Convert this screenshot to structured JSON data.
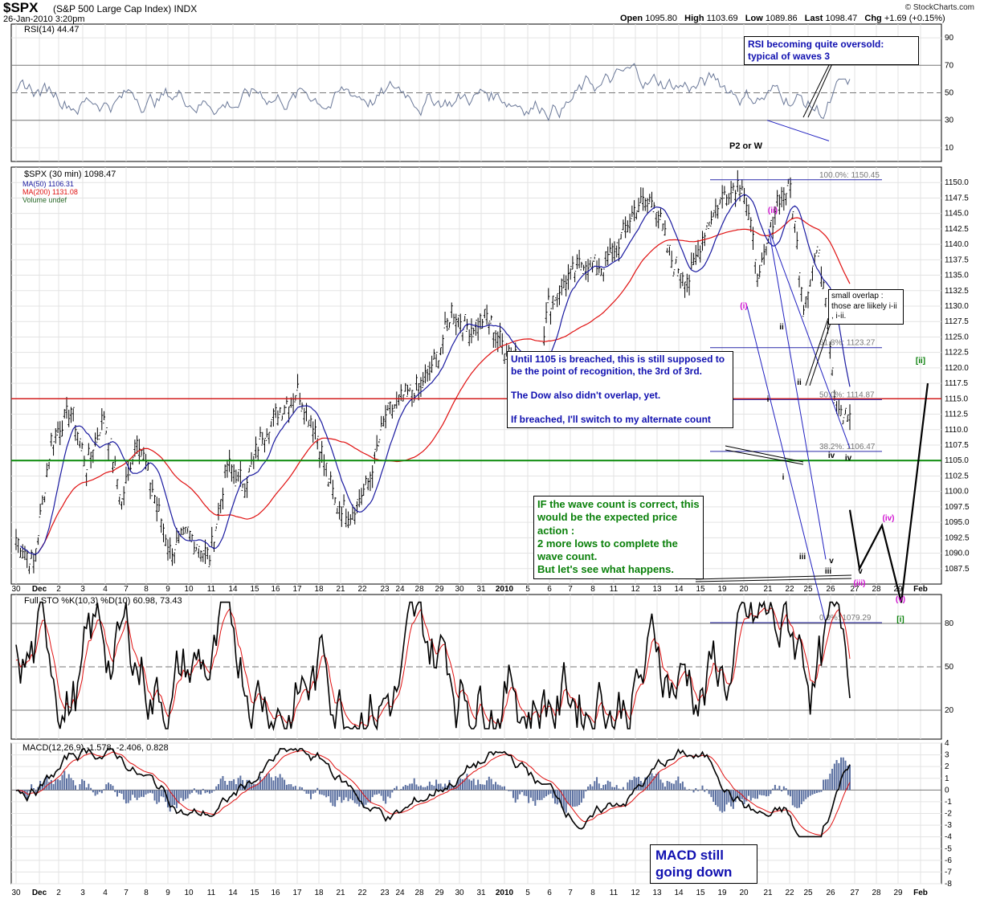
{
  "header": {
    "symbol": "$SPX",
    "description": "(S&P 500 Large Cap Index) INDX",
    "datetime": "26-Jan-2010 3:20pm",
    "open_label": "Open",
    "open": "1095.80",
    "high_label": "High",
    "high": "1103.69",
    "low_label": "Low",
    "low": "1089.86",
    "last_label": "Last",
    "last": "1098.47",
    "chg_label": "Chg",
    "chg": "+1.69 (+0.15%)",
    "credit": "© StockCharts.com"
  },
  "colors": {
    "price_bar": "#000000",
    "ma50": "#1a1aa0",
    "ma200": "#e01010",
    "rsi_line": "#6a7898",
    "support_green": "#0a8a0a",
    "resistance_red": "#d01010",
    "annotation_blue": "#1010b0",
    "annotation_green": "#0a800a",
    "annotation_magenta": "#d010d0",
    "wave_green": "#0a800a"
  },
  "annotations": {
    "rsi_note": "RSI becoming quite oversold: typical of waves 3",
    "p2_label": "P2 or W",
    "until_note": "Until 1105 is breached, this is still supposed to be the point of recognition, the 3rd of 3rd.\n\nThe Dow also didn't overlap, yet.\n\nIf breached, I'll switch to my alternate count",
    "if_note": "IF the wave count is correct, this would be the expected price action :\n2 more lows to complete the wave count.\nBut let's see what happens.",
    "overlap_note": "small overlap : those are liikely i-ii , i-ii.",
    "macd_note": "MACD still going down"
  },
  "chart_data": [
    {
      "type": "line",
      "title": "RSI(14) 44.47",
      "series": [
        {
          "name": "RSI(14)",
          "last": 44.47
        }
      ],
      "ylim": [
        0,
        100
      ],
      "y_ticks": [
        10,
        30,
        50,
        70,
        90
      ],
      "reference_lines": [
        30,
        50,
        70
      ],
      "grid": true
    },
    {
      "type": "line",
      "title": "$SPX (30 min) 1098.47",
      "legend": [
        {
          "name": "$SPX (30 min)",
          "value": "1098.47"
        },
        {
          "name": "MA(50)",
          "value": "1106.31"
        },
        {
          "name": "MA(200)",
          "value": "1131.08"
        },
        {
          "name": "Volume",
          "value": "undef"
        }
      ],
      "legend_placement": "top-left",
      "ylim": [
        1085,
        1152.5
      ],
      "y_ticks": [
        "1087.5",
        "1090.0",
        "1092.5",
        "1095.0",
        "1097.5",
        "1100.0",
        "1102.5",
        "1105.0",
        "1107.5",
        "1110.0",
        "1112.5",
        "1115.0",
        "1117.5",
        "1120.0",
        "1122.5",
        "1125.0",
        "1127.5",
        "1130.0",
        "1132.5",
        "1135.0",
        "1137.5",
        "1140.0",
        "1142.5",
        "1145.0",
        "1147.5",
        "1150.0"
      ],
      "x_labels": [
        "30",
        "Dec",
        "2",
        "3",
        "4",
        "7",
        "8",
        "9",
        "10",
        "11",
        "14",
        "15",
        "16",
        "17",
        "18",
        "21",
        "22",
        "23",
        "24",
        "28",
        "29",
        "30",
        "31",
        "2010",
        "5",
        "6",
        "7",
        "8",
        "11",
        "12",
        "13",
        "14",
        "15",
        "19",
        "20",
        "21",
        "22",
        "25",
        "26",
        "27",
        "28",
        "29",
        "Feb"
      ],
      "horizontal_lines": [
        {
          "price": 1115.0,
          "color": "red"
        },
        {
          "price": 1105.0,
          "color": "green"
        }
      ],
      "fibonacci": [
        {
          "label": "100.0%: 1150.45",
          "price": 1150.45
        },
        {
          "label": "61.8%: 1123.27",
          "price": 1123.27
        },
        {
          "label": "50.0%: 1114.87",
          "price": 1114.87
        },
        {
          "label": "38.2%: 1106.47",
          "price": 1106.47
        },
        {
          "label": "0.0%: 1079.29",
          "price": 1079.29
        }
      ],
      "wave_labels": [
        "(ii)",
        "(i)",
        "ii",
        "i",
        "ii",
        "i",
        "iv",
        "iv",
        "iii",
        "v",
        "iii",
        "v",
        "(iii)",
        "(iv)",
        "(v)",
        "[ii]",
        "[i]"
      ],
      "grid": true
    },
    {
      "type": "line",
      "title": "Full STO %K(10,3) %D(10) 60.98, 73.43",
      "series": [
        {
          "name": "%K(10,3)",
          "last": 60.98
        },
        {
          "name": "%D(10)",
          "last": 73.43
        }
      ],
      "ylim": [
        0,
        100
      ],
      "y_ticks": [
        20,
        50,
        80
      ],
      "reference_lines": [
        20,
        50,
        80
      ],
      "grid": true
    },
    {
      "type": "line",
      "title": "MACD(12,26,9) -1.578, -2.406, 0.828",
      "series": [
        {
          "name": "MACD(12,26,9)",
          "last": -1.578
        },
        {
          "name": "Signal",
          "last": -2.406
        },
        {
          "name": "Histogram",
          "last": 0.828
        }
      ],
      "ylim": [
        -8,
        4
      ],
      "y_ticks": [
        -8,
        -7,
        -6,
        -5,
        -4,
        -3,
        -2,
        -1,
        0,
        1,
        2,
        3,
        4
      ],
      "grid": true
    }
  ]
}
